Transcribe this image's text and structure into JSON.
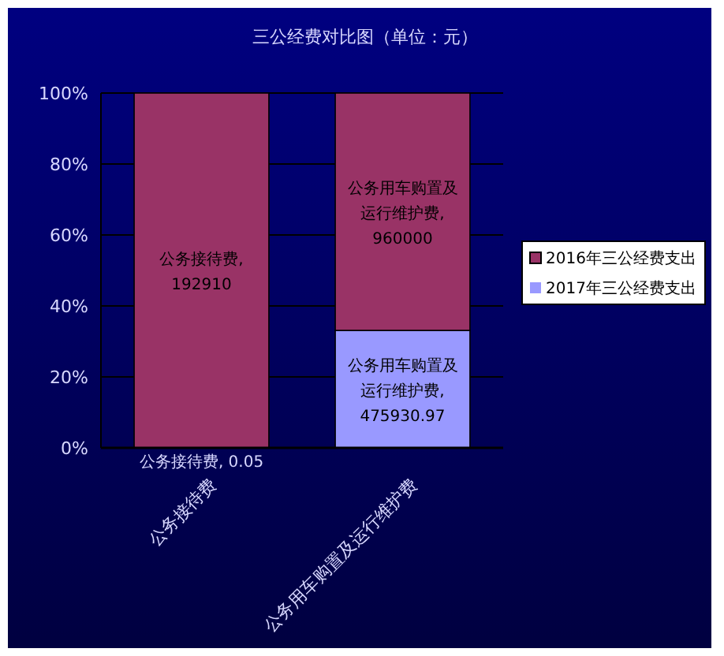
{
  "chart_data": {
    "type": "bar",
    "title": "三公经费对比图（单位：元）",
    "categories": [
      "公务接待费",
      "公务用车购置及运行维护费"
    ],
    "stacked": true,
    "series": [
      {
        "name": "2017年三公经费支出",
        "color": "#9999ff",
        "values": [
          0,
          33.1
        ]
      },
      {
        "name": "2016年三公经费支出",
        "color": "#993366",
        "values": [
          100,
          66.9
        ]
      }
    ],
    "annotations": [
      "公务接待费, 0.05",
      "公务用车购置及运行维护费, 475930.97",
      "公务接待费, 192910",
      "公务用车购置及运行维护费, 960000"
    ],
    "ylim": [
      0,
      100
    ],
    "yticks": [
      {
        "value": 0,
        "label": "0%"
      },
      {
        "value": 20,
        "label": "20%"
      },
      {
        "value": 40,
        "label": "40%"
      },
      {
        "value": 60,
        "label": "60%"
      },
      {
        "value": 80,
        "label": "80%"
      },
      {
        "value": 100,
        "label": "100%"
      }
    ],
    "grid": "y",
    "legend": "right"
  }
}
